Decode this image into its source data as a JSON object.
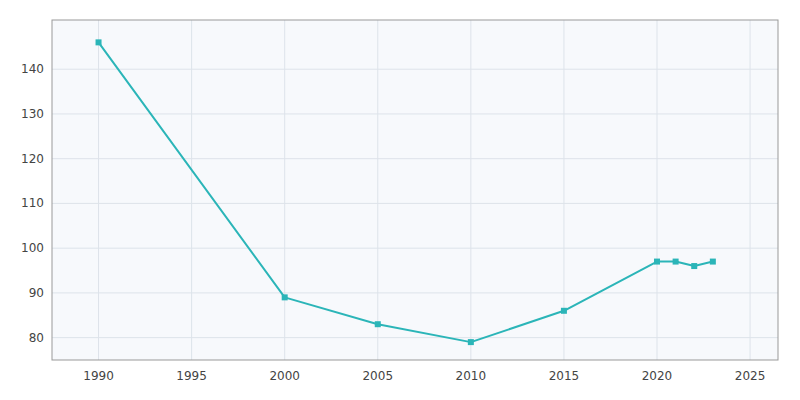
{
  "chart_data": {
    "type": "line",
    "x": [
      1990,
      2000,
      2005,
      2010,
      2015,
      2020,
      2021,
      2022,
      2023
    ],
    "values": [
      146,
      89,
      83,
      79,
      86,
      97,
      97,
      96,
      97
    ],
    "color": "#2BB5B8",
    "marker": "square",
    "xlim": [
      1987.5,
      2026.5
    ],
    "ylim": [
      75,
      151
    ],
    "xticks": [
      1990,
      1995,
      2000,
      2005,
      2010,
      2015,
      2020,
      2025
    ],
    "yticks": [
      80,
      90,
      100,
      110,
      120,
      130,
      140
    ],
    "grid": true
  }
}
